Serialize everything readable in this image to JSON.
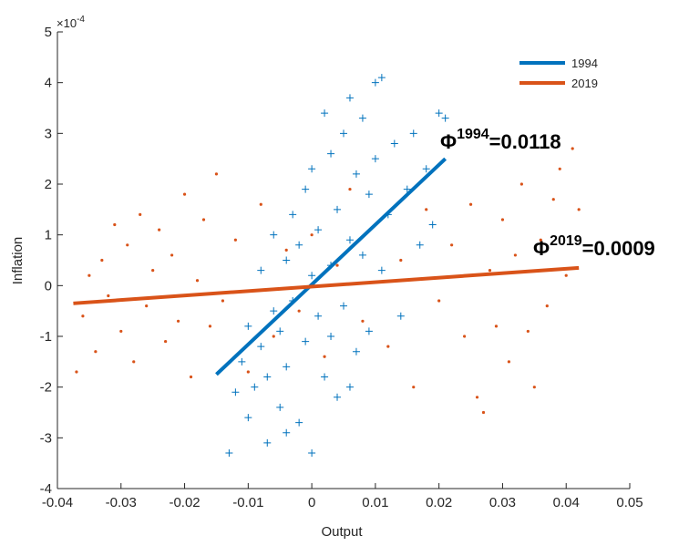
{
  "chart_data": {
    "type": "scatter",
    "x_label": "Output",
    "y_label": "Inflation",
    "y_exponent": {
      "base": "×10",
      "power": "-4"
    },
    "xlim": [
      -0.04,
      0.05
    ],
    "xticks": [
      -0.04,
      -0.03,
      -0.02,
      -0.01,
      0,
      0.01,
      0.02,
      0.03,
      0.04,
      0.05
    ],
    "ylim": [
      -4,
      5
    ],
    "yticks": [
      -4,
      -3,
      -2,
      -1,
      0,
      1,
      2,
      3,
      4,
      5
    ],
    "legend": "top-right",
    "points": [
      {
        "color": "#0072bd",
        "marker": "+",
        "x": [
          -0.013,
          -0.012,
          -0.011,
          -0.01,
          -0.01,
          -0.009,
          -0.008,
          -0.008,
          -0.007,
          -0.007,
          -0.006,
          -0.006,
          -0.005,
          -0.005,
          -0.004,
          -0.004,
          -0.003,
          -0.003,
          -0.002,
          -0.002,
          -0.001,
          -0.001,
          0,
          0,
          0,
          0.001,
          0.001,
          0.002,
          0.002,
          0.003,
          0.003,
          0.004,
          0.004,
          0.005,
          0.005,
          0.006,
          0.006,
          0.007,
          0.007,
          0.008,
          0.008,
          0.009,
          0.009,
          0.01,
          0.01,
          0.011,
          0.011,
          0.012,
          0.013,
          0.014,
          0.015,
          0.016,
          0.017,
          0.018,
          0.019,
          0.02,
          0.021,
          0.003,
          -0.004,
          0.006
        ],
        "values": [
          -3.3,
          -2.1,
          -1.5,
          -2.6,
          -0.8,
          -2.0,
          -1.2,
          0.3,
          -3.1,
          -1.8,
          -0.5,
          1.0,
          -2.4,
          -0.9,
          0.5,
          -1.6,
          1.4,
          -0.3,
          -2.7,
          0.8,
          -1.1,
          1.9,
          0.2,
          -3.3,
          2.3,
          -0.6,
          1.1,
          3.4,
          -1.8,
          0.4,
          2.6,
          -2.2,
          1.5,
          3.0,
          -0.4,
          3.7,
          0.9,
          2.2,
          -1.3,
          3.3,
          0.6,
          1.8,
          -0.9,
          4.0,
          2.5,
          4.1,
          0.3,
          1.4,
          2.8,
          -0.6,
          1.9,
          3.0,
          0.8,
          2.3,
          1.2,
          3.4,
          3.3,
          -1.0,
          -2.9,
          -2.0
        ]
      },
      {
        "color": "#d95319",
        "marker": ".",
        "x": [
          -0.037,
          -0.036,
          -0.035,
          -0.034,
          -0.033,
          -0.032,
          -0.031,
          -0.03,
          -0.029,
          -0.028,
          -0.027,
          -0.026,
          -0.025,
          -0.024,
          -0.023,
          -0.022,
          -0.021,
          -0.02,
          -0.019,
          -0.018,
          -0.017,
          -0.016,
          -0.015,
          -0.014,
          -0.012,
          -0.01,
          -0.008,
          -0.006,
          -0.004,
          -0.002,
          0,
          0.002,
          0.004,
          0.006,
          0.008,
          0.01,
          0.012,
          0.014,
          0.016,
          0.018,
          0.02,
          0.022,
          0.024,
          0.025,
          0.026,
          0.027,
          0.028,
          0.029,
          0.03,
          0.031,
          0.032,
          0.033,
          0.034,
          0.035,
          0.036,
          0.037,
          0.038,
          0.039,
          0.04,
          0.041,
          0.042
        ],
        "values": [
          -1.7,
          -0.6,
          0.2,
          -1.3,
          0.5,
          -0.2,
          1.2,
          -0.9,
          0.8,
          -1.5,
          1.4,
          -0.4,
          0.3,
          1.1,
          -1.1,
          0.6,
          -0.7,
          1.8,
          -1.8,
          0.1,
          1.3,
          -0.8,
          2.2,
          -0.3,
          0.9,
          -1.7,
          1.6,
          -1.0,
          0.7,
          -0.5,
          1.0,
          -1.4,
          0.4,
          1.9,
          -0.7,
          1.2,
          -1.2,
          0.5,
          -2.0,
          1.5,
          -0.3,
          0.8,
          -1.0,
          1.6,
          -2.2,
          -2.5,
          0.3,
          -0.8,
          1.3,
          -1.5,
          0.6,
          2.0,
          -0.9,
          -2.0,
          0.9,
          -0.4,
          1.7,
          2.3,
          0.2,
          2.7,
          1.5
        ]
      }
    ],
    "series": [
      {
        "name": "1994",
        "color": "#0072bd",
        "x": [
          -0.015,
          0.021
        ],
        "values": [
          -1.75,
          2.5
        ]
      },
      {
        "name": "2019",
        "color": "#d95319",
        "x": [
          -0.0375,
          0.042
        ],
        "values": [
          -0.35,
          0.35
        ]
      }
    ],
    "annotations": [
      {
        "symbol": "Φ",
        "superscript": "1994",
        "text": "=0.0118"
      },
      {
        "symbol": "Φ",
        "superscript": "2019",
        "text": "=0.0009"
      }
    ]
  }
}
